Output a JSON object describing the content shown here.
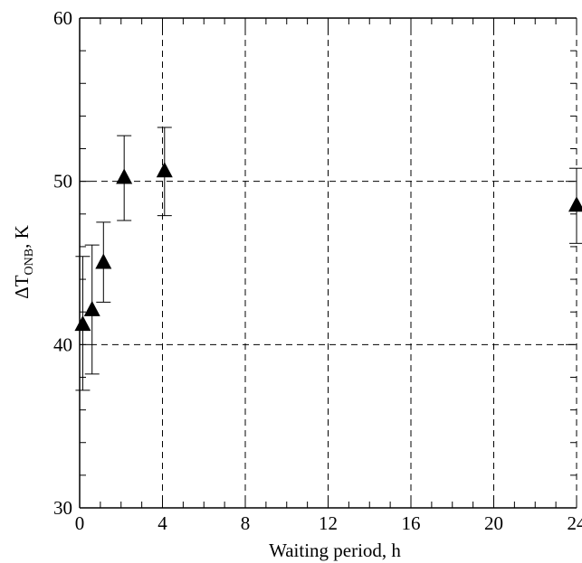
{
  "chart_data": {
    "type": "scatter",
    "title": "",
    "xlabel": "Waiting period, h",
    "ylabel": {
      "prefix": "ΔT",
      "subscript": "ONB",
      "suffix": ", K"
    },
    "xlim": [
      0,
      24
    ],
    "ylim": [
      30,
      60
    ],
    "x_ticks": [
      0,
      4,
      8,
      12,
      16,
      20,
      24
    ],
    "y_ticks": [
      30,
      40,
      50,
      60
    ],
    "grid": true,
    "grid_style": "dashed",
    "marker": "filled-triangle",
    "marker_color": "#000000",
    "series": [
      {
        "points": [
          {
            "x": 0.15,
            "y": 41.2,
            "err_low": 37.2,
            "err_high": 45.4
          },
          {
            "x": 0.6,
            "y": 42.1,
            "err_low": 38.2,
            "err_high": 46.1
          },
          {
            "x": 1.15,
            "y": 45.0,
            "err_low": 42.6,
            "err_high": 47.5
          },
          {
            "x": 2.15,
            "y": 50.2,
            "err_low": 47.6,
            "err_high": 52.8
          },
          {
            "x": 4.1,
            "y": 50.6,
            "err_low": 47.9,
            "err_high": 53.3
          },
          {
            "x": 24.0,
            "y": 48.5,
            "err_low": 46.2,
            "err_high": 50.8
          }
        ]
      }
    ]
  }
}
